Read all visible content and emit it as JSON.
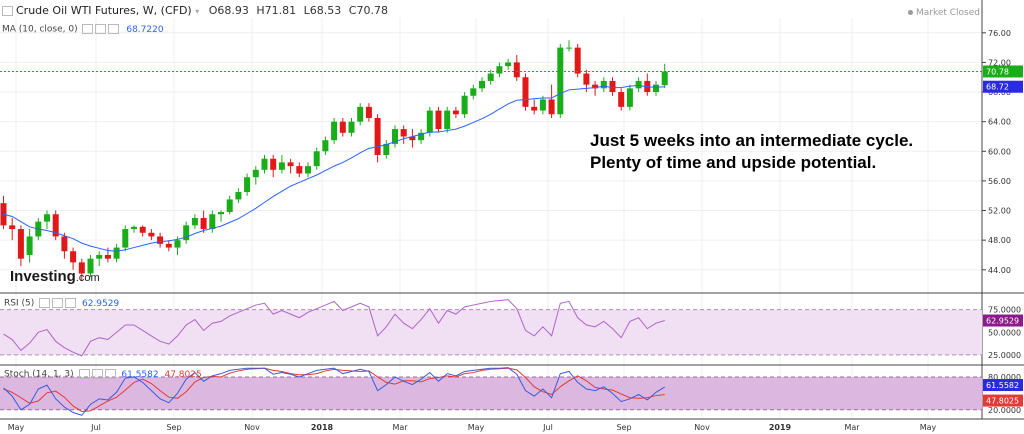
{
  "header": {
    "symbol": "Crude Oil WTI Futures, W, (CFD)",
    "open": "O68.93",
    "high": "H71.81",
    "low": "L68.53",
    "close": "C70.78",
    "ma_label": "MA (10, close, 0)",
    "ma_value": "68.7220",
    "market_status": "Market Closed"
  },
  "annotation": {
    "line1": "Just 5 weeks into an intermediate cycle.",
    "line2": "Plenty of time and upside potential."
  },
  "logo": {
    "name": "Investing",
    "suffix": ".com"
  },
  "rsi_panel": {
    "label": "RSI (5)",
    "value": "62.9529"
  },
  "stoch_panel": {
    "label": "Stoch (14, 1, 3)",
    "k_value": "61.5582",
    "d_value": "47.8025"
  },
  "colors": {
    "up": "#1aad1a",
    "down": "#e01818",
    "ma": "#2962ff",
    "rsi": "#b164c9",
    "stoch_k": "#3b5bdb",
    "stoch_d": "#e53935",
    "band": "#f1dff3",
    "badge_green": "#1aad1a",
    "badge_blue": "#2a2ae0",
    "badge_magenta": "#8c1a8c",
    "badge_red": "#e53935"
  },
  "chart_data": [
    {
      "type": "candlestick",
      "title": "Crude Oil WTI Futures, W, (CFD)",
      "price_ticks": [
        "76.00",
        "72.00",
        "68.00",
        "64.00",
        "60.00",
        "56.00",
        "52.00",
        "48.00",
        "44.00"
      ],
      "price_range": [
        41,
        78
      ],
      "last_price": "70.78",
      "ma_badge": "68.72",
      "x_labels": [
        "May",
        "Jul",
        "Sep",
        "Nov",
        "2018",
        "Mar",
        "May",
        "Jul",
        "Sep",
        "Nov",
        "2019",
        "Mar",
        "May"
      ],
      "candles": [
        {
          "o": 53,
          "h": 54,
          "l": 49.5,
          "c": 50
        },
        {
          "o": 50,
          "h": 51,
          "l": 48,
          "c": 49.5
        },
        {
          "o": 49.5,
          "h": 50,
          "l": 44.5,
          "c": 45.5
        },
        {
          "o": 46,
          "h": 49.5,
          "l": 45,
          "c": 48.5
        },
        {
          "o": 48.5,
          "h": 51,
          "l": 48,
          "c": 50.5
        },
        {
          "o": 50.5,
          "h": 52,
          "l": 49.5,
          "c": 51.5
        },
        {
          "o": 51.5,
          "h": 52,
          "l": 48,
          "c": 48.5
        },
        {
          "o": 48.5,
          "h": 49,
          "l": 45.5,
          "c": 46.5
        },
        {
          "o": 46.5,
          "h": 47,
          "l": 44,
          "c": 45
        },
        {
          "o": 45,
          "h": 45.5,
          "l": 42.5,
          "c": 43.5
        },
        {
          "o": 43.5,
          "h": 46,
          "l": 43,
          "c": 45.5
        },
        {
          "o": 45.5,
          "h": 46.5,
          "l": 44.5,
          "c": 46
        },
        {
          "o": 46,
          "h": 47,
          "l": 45,
          "c": 45.5
        },
        {
          "o": 45.5,
          "h": 47.5,
          "l": 45,
          "c": 47
        },
        {
          "o": 47,
          "h": 50,
          "l": 46.5,
          "c": 49.5
        },
        {
          "o": 49.5,
          "h": 50,
          "l": 49,
          "c": 49.8
        },
        {
          "o": 49.8,
          "h": 50,
          "l": 48.5,
          "c": 49
        },
        {
          "o": 49,
          "h": 49.5,
          "l": 48,
          "c": 48.5
        },
        {
          "o": 48.5,
          "h": 49,
          "l": 47,
          "c": 47.5
        },
        {
          "o": 47.5,
          "h": 48,
          "l": 46.5,
          "c": 47
        },
        {
          "o": 47,
          "h": 48.5,
          "l": 46,
          "c": 48
        },
        {
          "o": 48,
          "h": 50.5,
          "l": 47.5,
          "c": 50
        },
        {
          "o": 50,
          "h": 51.5,
          "l": 49.5,
          "c": 51
        },
        {
          "o": 51,
          "h": 52,
          "l": 49,
          "c": 49.5
        },
        {
          "o": 49.5,
          "h": 52,
          "l": 49,
          "c": 51.5
        },
        {
          "o": 51.5,
          "h": 52,
          "l": 50.5,
          "c": 51.8
        },
        {
          "o": 51.8,
          "h": 54,
          "l": 51.5,
          "c": 53.5
        },
        {
          "o": 53.5,
          "h": 55,
          "l": 53,
          "c": 54.5
        },
        {
          "o": 54.5,
          "h": 57,
          "l": 54,
          "c": 56.5
        },
        {
          "o": 56.5,
          "h": 58,
          "l": 55.5,
          "c": 57.5
        },
        {
          "o": 57.5,
          "h": 59.5,
          "l": 57,
          "c": 59
        },
        {
          "o": 59,
          "h": 59.5,
          "l": 56.5,
          "c": 57.5
        },
        {
          "o": 57.5,
          "h": 59.5,
          "l": 57,
          "c": 58.5
        },
        {
          "o": 58.5,
          "h": 59,
          "l": 57,
          "c": 58
        },
        {
          "o": 58,
          "h": 58.5,
          "l": 56.5,
          "c": 57
        },
        {
          "o": 57,
          "h": 58.5,
          "l": 56.5,
          "c": 58
        },
        {
          "o": 58,
          "h": 60.5,
          "l": 57.5,
          "c": 60
        },
        {
          "o": 60,
          "h": 62,
          "l": 59.5,
          "c": 61.5
        },
        {
          "o": 61.5,
          "h": 64.5,
          "l": 61,
          "c": 64
        },
        {
          "o": 64,
          "h": 64.5,
          "l": 62,
          "c": 62.5
        },
        {
          "o": 62.5,
          "h": 64.5,
          "l": 62,
          "c": 64
        },
        {
          "o": 64,
          "h": 66.5,
          "l": 63.5,
          "c": 66
        },
        {
          "o": 66,
          "h": 66.5,
          "l": 64,
          "c": 64.5
        },
        {
          "o": 64.5,
          "h": 65,
          "l": 58.5,
          "c": 59.5
        },
        {
          "o": 59.5,
          "h": 61.5,
          "l": 59,
          "c": 61
        },
        {
          "o": 61,
          "h": 63.5,
          "l": 60.5,
          "c": 63
        },
        {
          "o": 63,
          "h": 63.5,
          "l": 61,
          "c": 62
        },
        {
          "o": 62,
          "h": 63,
          "l": 60.5,
          "c": 61.5
        },
        {
          "o": 61.5,
          "h": 63,
          "l": 61,
          "c": 62.5
        },
        {
          "o": 62.5,
          "h": 66,
          "l": 62,
          "c": 65.5
        },
        {
          "o": 65.5,
          "h": 66,
          "l": 62.5,
          "c": 63
        },
        {
          "o": 63,
          "h": 66,
          "l": 62.5,
          "c": 65.5
        },
        {
          "o": 65.5,
          "h": 66,
          "l": 64.5,
          "c": 65
        },
        {
          "o": 65,
          "h": 68,
          "l": 64.5,
          "c": 67.5
        },
        {
          "o": 67.5,
          "h": 69,
          "l": 67,
          "c": 68.5
        },
        {
          "o": 68.5,
          "h": 70,
          "l": 68,
          "c": 69.5
        },
        {
          "o": 69.5,
          "h": 71,
          "l": 69,
          "c": 70.5
        },
        {
          "o": 70.5,
          "h": 72,
          "l": 70,
          "c": 71.5
        },
        {
          "o": 71.5,
          "h": 72.5,
          "l": 71,
          "c": 72
        },
        {
          "o": 72,
          "h": 73,
          "l": 69.5,
          "c": 70
        },
        {
          "o": 70,
          "h": 70.5,
          "l": 65.5,
          "c": 66
        },
        {
          "o": 66,
          "h": 67,
          "l": 65,
          "c": 65.5
        },
        {
          "o": 65.5,
          "h": 67.5,
          "l": 65,
          "c": 67
        },
        {
          "o": 67,
          "h": 69,
          "l": 64.5,
          "c": 65
        },
        {
          "o": 65,
          "h": 74.5,
          "l": 64.5,
          "c": 74
        },
        {
          "o": 74,
          "h": 75,
          "l": 73.5,
          "c": 74
        },
        {
          "o": 74,
          "h": 74.5,
          "l": 70,
          "c": 70.5
        },
        {
          "o": 70.5,
          "h": 71,
          "l": 68,
          "c": 69
        },
        {
          "o": 69,
          "h": 69.5,
          "l": 67.5,
          "c": 68.5
        },
        {
          "o": 68.5,
          "h": 70,
          "l": 68,
          "c": 69.5
        },
        {
          "o": 69.5,
          "h": 70,
          "l": 67.5,
          "c": 68
        },
        {
          "o": 68,
          "h": 68.5,
          "l": 65.5,
          "c": 66
        },
        {
          "o": 66,
          "h": 69,
          "l": 65.5,
          "c": 68.5
        },
        {
          "o": 68.5,
          "h": 70,
          "l": 68,
          "c": 69.5
        },
        {
          "o": 69.5,
          "h": 70.5,
          "l": 67.5,
          "c": 68
        },
        {
          "o": 68,
          "h": 69.5,
          "l": 67.5,
          "c": 69
        },
        {
          "o": 68.93,
          "h": 71.81,
          "l": 68.53,
          "c": 70.78
        }
      ],
      "ma": [
        51.5,
        51.2,
        50.5,
        49.8,
        49.5,
        49.3,
        49,
        48.6,
        48.2,
        47.6,
        47.2,
        46.9,
        46.6,
        46.5,
        46.7,
        47,
        47.3,
        47.6,
        47.8,
        47.9,
        48.1,
        48.4,
        48.9,
        49.3,
        49.6,
        49.9,
        50.4,
        50.9,
        51.6,
        52.3,
        53.1,
        53.9,
        54.6,
        55.3,
        55.8,
        56.3,
        56.8,
        57.4,
        58,
        58.5,
        59.1,
        59.8,
        60.4,
        60.6,
        60.9,
        61.3,
        61.7,
        62,
        62.3,
        62.6,
        62.6,
        62.8,
        63,
        63.4,
        63.9,
        64.4,
        65,
        65.7,
        66.4,
        66.9,
        67,
        67.1,
        67.2,
        67.2,
        67.8,
        68.3,
        68.4,
        68.5,
        68.6,
        68.8,
        68.6,
        68.6,
        68.8,
        68.9,
        68.7,
        68.65,
        68.72
      ]
    },
    {
      "type": "line",
      "title": "RSI (5)",
      "y_ticks": [
        "75.0000",
        "50.0000",
        "25.0000"
      ],
      "y_range": [
        15,
        90
      ],
      "bands": [
        75,
        25
      ],
      "series": [
        {
          "name": "RSI (5)",
          "values": [
            48,
            42,
            30,
            38,
            50,
            53,
            40,
            33,
            28,
            24,
            40,
            44,
            42,
            50,
            58,
            58,
            52,
            46,
            40,
            37,
            46,
            58,
            64,
            52,
            60,
            62,
            68,
            72,
            76,
            80,
            82,
            70,
            74,
            70,
            66,
            72,
            76,
            80,
            84,
            74,
            78,
            82,
            78,
            46,
            56,
            70,
            60,
            54,
            64,
            76,
            60,
            74,
            70,
            78,
            80,
            82,
            84,
            85,
            86,
            76,
            52,
            46,
            56,
            46,
            82,
            84,
            66,
            58,
            56,
            62,
            54,
            44,
            62,
            66,
            54,
            60,
            62.95
          ]
        }
      ]
    },
    {
      "type": "line",
      "title": "Stoch (14, 1, 3)",
      "y_ticks": [
        "80.0000",
        "20.0000"
      ],
      "y_range": [
        5,
        100
      ],
      "bands": [
        80,
        20
      ],
      "series": [
        {
          "name": "Stoch K",
          "values": [
            60,
            45,
            20,
            30,
            58,
            65,
            40,
            25,
            15,
            10,
            30,
            40,
            38,
            52,
            78,
            80,
            70,
            55,
            40,
            33,
            50,
            76,
            88,
            72,
            82,
            86,
            92,
            94,
            96,
            96,
            96,
            85,
            88,
            85,
            80,
            86,
            92,
            94,
            96,
            86,
            90,
            94,
            90,
            55,
            66,
            80,
            72,
            66,
            76,
            88,
            72,
            86,
            82,
            90,
            92,
            94,
            96,
            96,
            97,
            85,
            55,
            45,
            58,
            42,
            86,
            90,
            70,
            58,
            55,
            62,
            50,
            35,
            40,
            48,
            38,
            52,
            61.56
          ]
        },
        {
          "name": "Stoch D",
          "values": [
            58,
            52,
            42,
            32,
            36,
            51,
            54,
            43,
            27,
            17,
            18,
            27,
            36,
            43,
            56,
            70,
            76,
            68,
            55,
            43,
            41,
            53,
            71,
            79,
            81,
            80,
            87,
            91,
            94,
            95,
            96,
            92,
            90,
            86,
            84,
            84,
            86,
            91,
            94,
            92,
            91,
            90,
            91,
            80,
            70,
            67,
            73,
            73,
            71,
            77,
            79,
            82,
            80,
            86,
            88,
            92,
            94,
            95,
            96,
            93,
            79,
            62,
            53,
            48,
            62,
            73,
            82,
            73,
            61,
            58,
            56,
            49,
            42,
            41,
            42,
            46,
            47.8
          ]
        }
      ]
    }
  ]
}
